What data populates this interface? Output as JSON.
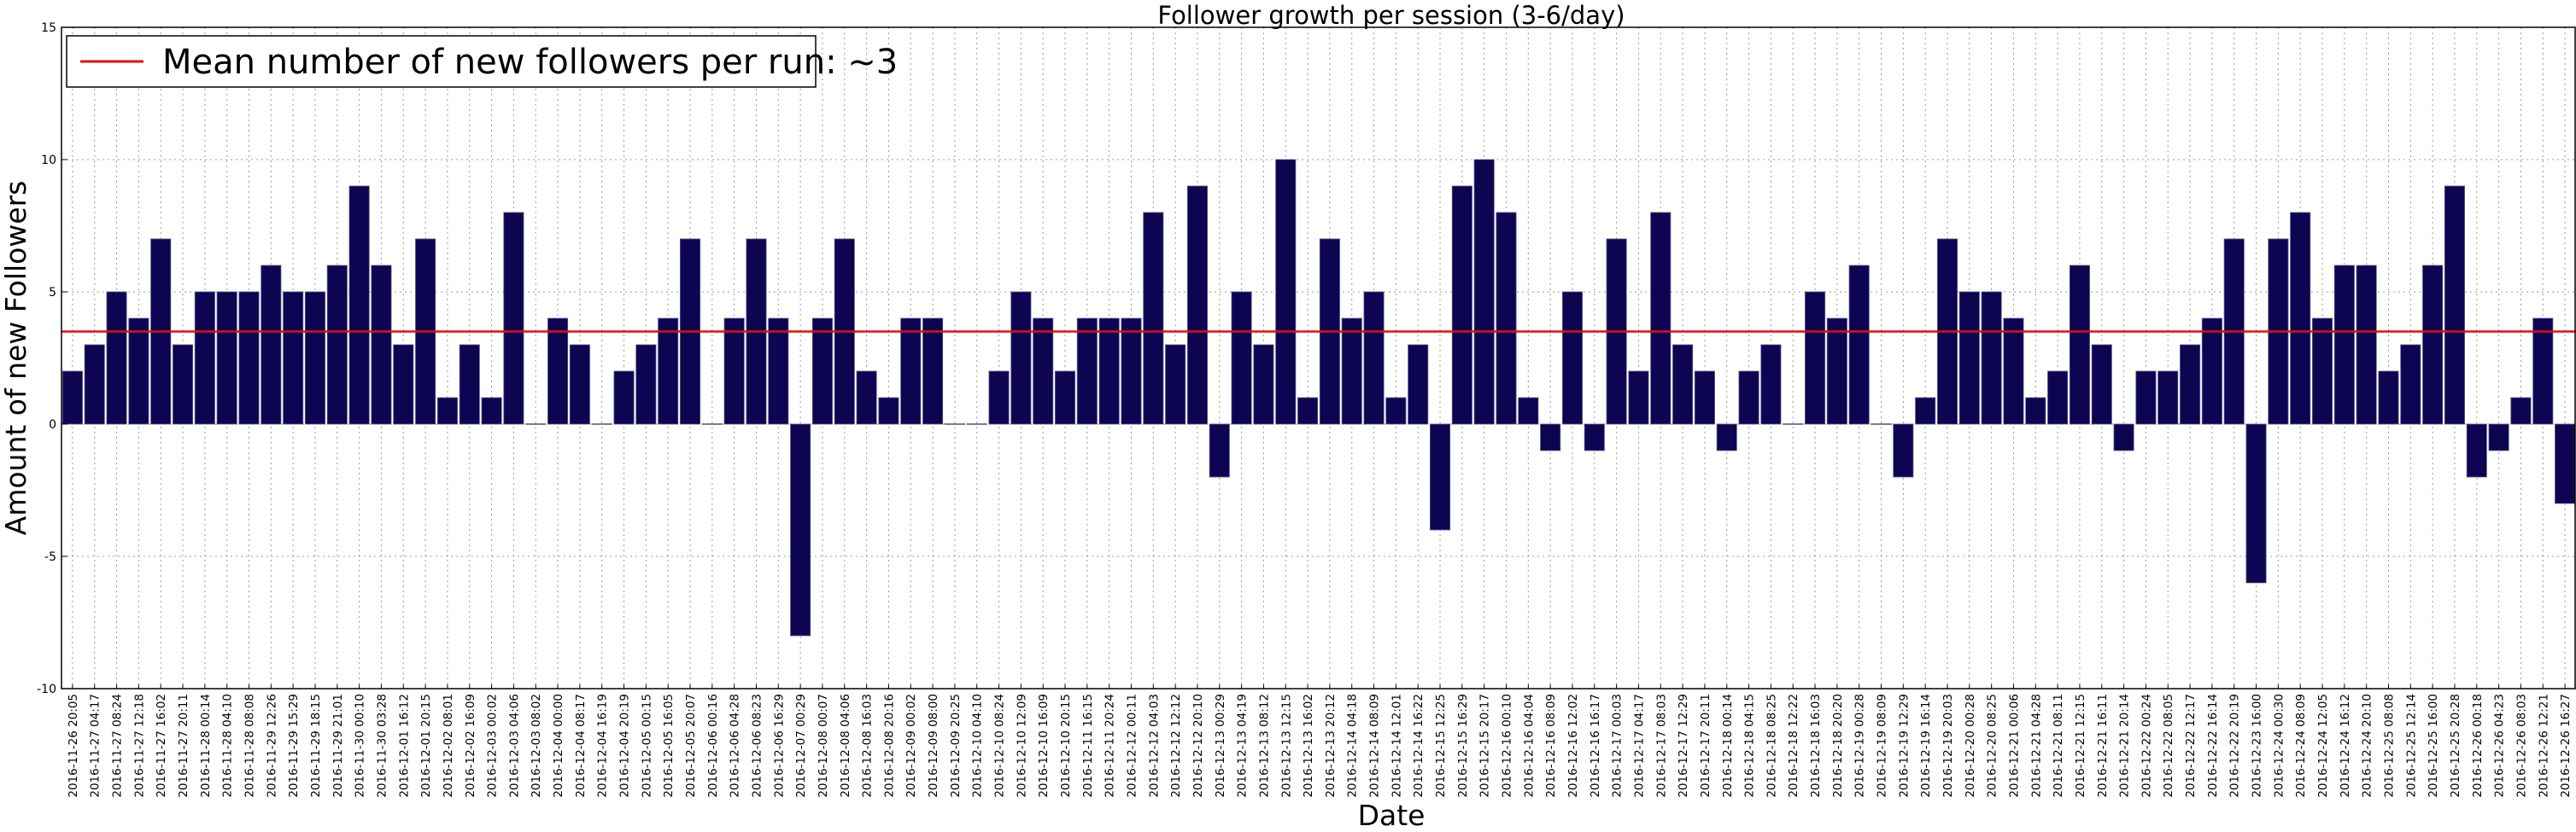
{
  "colors": {
    "bar": "#0d0452",
    "mean_line": "#e01010",
    "grid": "#9a9a9a",
    "axis": "#000000"
  },
  "chart_data": {
    "type": "bar",
    "title": "Follower growth per session (3-6/day)",
    "xlabel": "Date",
    "ylabel": "Amount of new Followers",
    "ylim": [
      -10,
      15
    ],
    "yticks": [
      -10,
      -5,
      0,
      5,
      10,
      15
    ],
    "grid": true,
    "legend_position": "top-left",
    "legend": [
      "Mean number of new followers per run: ~3"
    ],
    "mean_value": 3.5,
    "categories": [
      "2016-11-26 20:05",
      "2016-11-27 04:17",
      "2016-11-27 08:24",
      "2016-11-27 12:18",
      "2016-11-27 16:02",
      "2016-11-27 20:11",
      "2016-11-28 00:14",
      "2016-11-28 04:10",
      "2016-11-28 08:08",
      "2016-11-29 12:26",
      "2016-11-29 15:29",
      "2016-11-29 18:15",
      "2016-11-29 21:01",
      "2016-11-30 00:10",
      "2016-11-30 03:28",
      "2016-12-01 16:12",
      "2016-12-01 20:15",
      "2016-12-02 08:01",
      "2016-12-02 16:09",
      "2016-12-03 00:02",
      "2016-12-03 04:06",
      "2016-12-03 08:02",
      "2016-12-04 00:00",
      "2016-12-04 08:17",
      "2016-12-04 16:19",
      "2016-12-04 20:19",
      "2016-12-05 00:15",
      "2016-12-05 16:05",
      "2016-12-05 20:07",
      "2016-12-06 00:16",
      "2016-12-06 04:28",
      "2016-12-06 08:23",
      "2016-12-06 16:29",
      "2016-12-07 00:29",
      "2016-12-08 00:07",
      "2016-12-08 04:06",
      "2016-12-08 16:03",
      "2016-12-08 20:16",
      "2016-12-09 00:02",
      "2016-12-09 08:00",
      "2016-12-09 20:25",
      "2016-12-10 04:10",
      "2016-12-10 08:24",
      "2016-12-10 12:09",
      "2016-12-10 16:09",
      "2016-12-10 20:15",
      "2016-12-11 16:15",
      "2016-12-11 20:24",
      "2016-12-12 00:11",
      "2016-12-12 04:03",
      "2016-12-12 12:12",
      "2016-12-12 20:10",
      "2016-12-13 00:29",
      "2016-12-13 04:19",
      "2016-12-13 08:12",
      "2016-12-13 12:15",
      "2016-12-13 16:02",
      "2016-12-13 20:12",
      "2016-12-14 04:18",
      "2016-12-14 08:09",
      "2016-12-14 12:01",
      "2016-12-14 16:22",
      "2016-12-15 12:25",
      "2016-12-15 16:29",
      "2016-12-15 20:17",
      "2016-12-16 00:10",
      "2016-12-16 04:04",
      "2016-12-16 08:09",
      "2016-12-16 12:02",
      "2016-12-16 16:17",
      "2016-12-17 00:03",
      "2016-12-17 04:17",
      "2016-12-17 08:03",
      "2016-12-17 12:29",
      "2016-12-17 20:11",
      "2016-12-18 00:14",
      "2016-12-18 04:15",
      "2016-12-18 08:25",
      "2016-12-18 12:22",
      "2016-12-18 16:03",
      "2016-12-18 20:20",
      "2016-12-19 00:28",
      "2016-12-19 08:09",
      "2016-12-19 12:29",
      "2016-12-19 16:14",
      "2016-12-19 20:03",
      "2016-12-20 00:28",
      "2016-12-20 08:25",
      "2016-12-21 00:06",
      "2016-12-21 04:28",
      "2016-12-21 08:11",
      "2016-12-21 12:15",
      "2016-12-21 16:11",
      "2016-12-21 20:14",
      "2016-12-22 00:24",
      "2016-12-22 08:05",
      "2016-12-22 12:17",
      "2016-12-22 16:14",
      "2016-12-22 20:19",
      "2016-12-23 16:00",
      "2016-12-24 00:30",
      "2016-12-24 08:09",
      "2016-12-24 12:05",
      "2016-12-24 16:12",
      "2016-12-24 20:10",
      "2016-12-25 08:08",
      "2016-12-25 12:14",
      "2016-12-25 16:00",
      "2016-12-25 20:28",
      "2016-12-26 00:18",
      "2016-12-26 04:23",
      "2016-12-26 08:03",
      "2016-12-26 12:21",
      "2016-12-26 16:27"
    ],
    "values": [
      2,
      3,
      5,
      4,
      7,
      3,
      5,
      5,
      5,
      6,
      5,
      5,
      6,
      9,
      6,
      3,
      7,
      1,
      3,
      1,
      8,
      0,
      4,
      3,
      0,
      2,
      3,
      4,
      7,
      0,
      4,
      7,
      4,
      -8,
      4,
      7,
      2,
      1,
      4,
      4,
      0,
      0,
      2,
      5,
      4,
      2,
      4,
      4,
      4,
      8,
      3,
      9,
      -2,
      5,
      3,
      10,
      1,
      7,
      4,
      5,
      1,
      3,
      -4,
      9,
      10,
      8,
      1,
      -1,
      5,
      -1,
      7,
      2,
      8,
      3,
      2,
      -1,
      2,
      3,
      0,
      5,
      4,
      6,
      0,
      -2,
      1,
      7,
      5,
      5,
      4,
      1,
      2,
      6,
      3,
      -1,
      2,
      2,
      3,
      4,
      7,
      -6,
      7,
      8,
      4,
      6,
      6,
      2,
      3,
      6,
      9,
      -2,
      -1,
      1,
      4,
      -3
    ]
  }
}
